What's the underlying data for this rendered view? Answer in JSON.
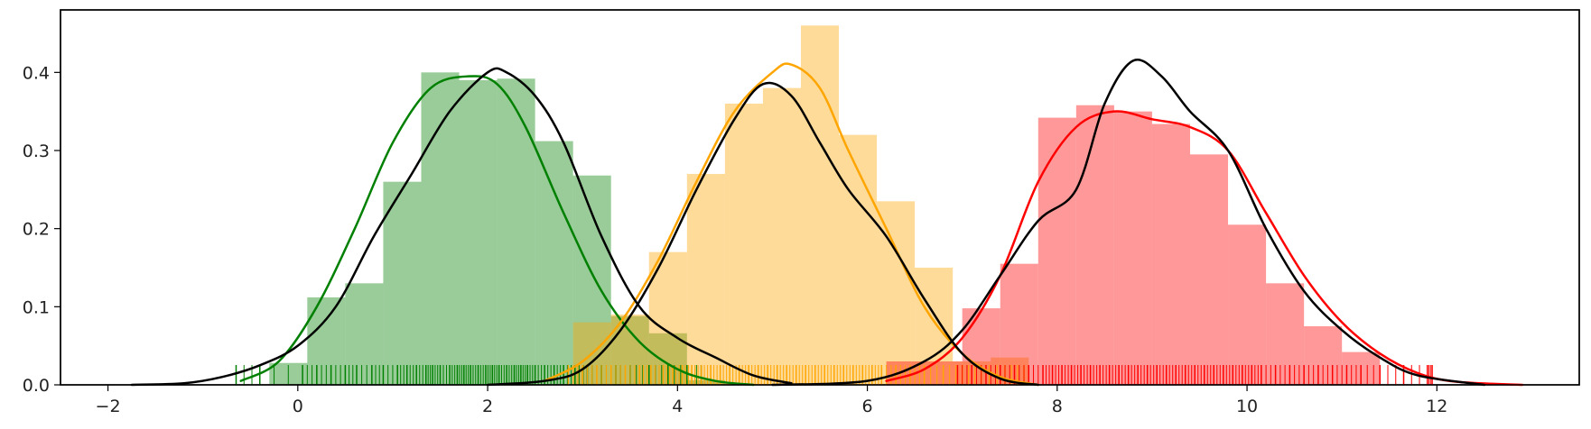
{
  "chart_data": {
    "type": "histogram",
    "title": "",
    "xlabel": "",
    "ylabel": "",
    "xlim": [
      -2.5,
      13.5
    ],
    "ylim": [
      0,
      0.48
    ],
    "grid": false,
    "legend": "none",
    "x_ticks": [
      -2,
      0,
      2,
      4,
      6,
      8,
      10,
      12
    ],
    "x_tick_labels": [
      "−2",
      "0",
      "2",
      "4",
      "6",
      "8",
      "10",
      "12"
    ],
    "y_ticks": [
      0.0,
      0.1,
      0.2,
      0.3,
      0.4
    ],
    "y_tick_labels": [
      "0.0",
      "0.1",
      "0.2",
      "0.3",
      "0.4"
    ],
    "series": [
      {
        "color": "#008000",
        "bin_edges": [
          -0.3,
          0.1,
          0.5,
          0.9,
          1.3,
          1.7,
          2.1,
          2.5,
          2.9,
          3.3,
          3.7,
          4.1,
          4.5
        ],
        "hist_values": [
          0.028,
          0.112,
          0.13,
          0.26,
          0.4,
          0.39,
          0.392,
          0.312,
          0.268,
          0.088,
          0.066,
          0.006
        ],
        "kde_x": [
          -0.6,
          -0.2,
          0.2,
          0.6,
          1.0,
          1.4,
          1.8,
          2.1,
          2.4,
          2.8,
          3.2,
          3.6,
          4.0,
          4.4,
          4.8
        ],
        "kde_y": [
          0.005,
          0.03,
          0.1,
          0.2,
          0.31,
          0.38,
          0.395,
          0.385,
          0.33,
          0.22,
          0.12,
          0.055,
          0.02,
          0.005,
          0.0
        ],
        "rug": [
          -0.65,
          -0.4,
          0.05,
          0.2,
          0.35,
          0.5,
          0.62,
          0.78,
          0.9,
          1.05,
          1.15,
          1.25,
          1.35,
          1.42,
          1.5,
          1.6,
          1.68,
          1.75,
          1.82,
          1.9,
          1.98,
          2.05,
          2.12,
          2.2,
          2.28,
          2.35,
          2.42,
          2.5,
          2.6,
          2.7,
          2.8,
          2.92,
          3.05,
          3.2,
          3.35,
          3.5,
          3.7,
          3.9,
          4.1,
          4.25
        ]
      },
      {
        "color": "#ffa500",
        "bin_edges": [
          2.9,
          3.3,
          3.7,
          4.1,
          4.5,
          4.9,
          5.3,
          5.7,
          6.1,
          6.5,
          6.9,
          7.3,
          7.7
        ],
        "hist_values": [
          0.08,
          0.09,
          0.17,
          0.27,
          0.36,
          0.38,
          0.46,
          0.32,
          0.235,
          0.15,
          0.03,
          0.035
        ],
        "kde_x": [
          2.6,
          3.0,
          3.4,
          3.8,
          4.2,
          4.6,
          5.0,
          5.2,
          5.5,
          5.8,
          6.2,
          6.6,
          7.0,
          7.4,
          7.8
        ],
        "kde_y": [
          0.005,
          0.03,
          0.08,
          0.16,
          0.26,
          0.35,
          0.4,
          0.41,
          0.38,
          0.3,
          0.2,
          0.1,
          0.04,
          0.01,
          0.0
        ],
        "rug": [
          2.85,
          3.0,
          3.15,
          3.3,
          3.45,
          3.6,
          3.72,
          3.85,
          3.95,
          4.05,
          4.15,
          4.25,
          4.35,
          4.45,
          4.55,
          4.65,
          4.75,
          4.85,
          4.95,
          5.05,
          5.15,
          5.25,
          5.35,
          5.45,
          5.55,
          5.65,
          5.75,
          5.85,
          5.95,
          6.05,
          6.15,
          6.3,
          6.45,
          6.6,
          6.8,
          7.0,
          7.2,
          7.45,
          7.65
        ]
      },
      {
        "color": "#ff0000",
        "bin_edges": [
          6.2,
          6.6,
          7.0,
          7.4,
          7.8,
          8.2,
          8.6,
          9.0,
          9.4,
          9.8,
          10.2,
          10.6,
          11.0,
          11.4
        ],
        "hist_values": [
          0.03,
          0.03,
          0.098,
          0.155,
          0.342,
          0.358,
          0.35,
          0.334,
          0.295,
          0.205,
          0.13,
          0.075,
          0.042
        ],
        "kde_x": [
          6.2,
          6.6,
          7.0,
          7.4,
          7.8,
          8.2,
          8.6,
          9.0,
          9.4,
          9.8,
          10.2,
          10.6,
          11.0,
          11.4,
          11.8,
          12.2,
          12.9
        ],
        "kde_y": [
          0.005,
          0.02,
          0.06,
          0.14,
          0.26,
          0.33,
          0.35,
          0.34,
          0.33,
          0.3,
          0.22,
          0.14,
          0.08,
          0.04,
          0.015,
          0.004,
          0.0
        ],
        "rug": [
          6.95,
          7.1,
          7.25,
          7.4,
          7.55,
          7.7,
          7.85,
          7.95,
          8.05,
          8.15,
          8.25,
          8.35,
          8.45,
          8.55,
          8.65,
          8.75,
          8.85,
          8.95,
          9.05,
          9.15,
          9.25,
          9.35,
          9.45,
          9.55,
          9.65,
          9.75,
          9.85,
          9.95,
          10.05,
          10.15,
          10.3,
          10.45,
          10.6,
          10.75,
          10.9,
          11.05,
          11.2,
          11.4,
          11.65,
          11.9,
          11.95
        ]
      },
      {
        "color": "#000000",
        "kde_x": [
          -1.75,
          -1.2,
          -0.8,
          -0.4,
          0.0,
          0.4,
          0.8,
          1.2,
          1.6,
          2.0,
          2.2,
          2.5,
          2.8,
          3.2,
          3.6,
          4.0,
          4.4,
          4.8,
          5.2
        ],
        "kde_y": [
          0.0,
          0.002,
          0.01,
          0.025,
          0.05,
          0.1,
          0.19,
          0.27,
          0.35,
          0.4,
          0.4,
          0.37,
          0.31,
          0.19,
          0.1,
          0.06,
          0.035,
          0.012,
          0.002
        ]
      },
      {
        "color": "#000000",
        "kde_x": [
          2.0,
          2.6,
          3.0,
          3.4,
          3.8,
          4.2,
          4.6,
          4.9,
          5.2,
          5.5,
          5.8,
          6.2,
          6.6,
          7.0,
          7.4,
          7.8
        ],
        "kde_y": [
          0.0,
          0.005,
          0.02,
          0.07,
          0.15,
          0.25,
          0.34,
          0.385,
          0.37,
          0.31,
          0.25,
          0.19,
          0.11,
          0.04,
          0.008,
          0.0
        ],
        "note": ""
      },
      {
        "color": "#000000",
        "kde_x": [
          5.0,
          6.0,
          6.6,
          7.0,
          7.4,
          7.8,
          8.2,
          8.5,
          8.8,
          9.1,
          9.4,
          9.8,
          10.2,
          10.6,
          11.0,
          11.4,
          11.8,
          12.5
        ],
        "kde_y": [
          0.0,
          0.005,
          0.03,
          0.07,
          0.14,
          0.21,
          0.25,
          0.36,
          0.415,
          0.395,
          0.35,
          0.3,
          0.2,
          0.12,
          0.07,
          0.035,
          0.012,
          0.0
        ]
      }
    ]
  }
}
